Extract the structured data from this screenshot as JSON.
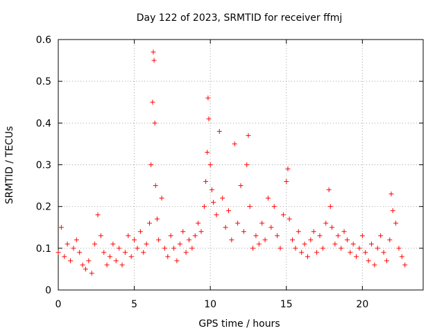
{
  "chart_data": {
    "type": "scatter",
    "title": "Day 122 of 2023, SRMTID for receiver ffmj",
    "xlabel": "GPS time / hours",
    "ylabel": "SRMTID / TECUs",
    "xlim": [
      0,
      24
    ],
    "ylim": [
      0,
      0.6
    ],
    "x_ticks": [
      0,
      5,
      10,
      15,
      20
    ],
    "x_tick_labels": [
      "0",
      "5",
      "10",
      "15",
      "20"
    ],
    "y_ticks": [
      0,
      0.1,
      0.2,
      0.3,
      0.4,
      0.5,
      0.6
    ],
    "y_tick_labels": [
      "0",
      "0.1",
      "0.2",
      "0.3",
      "0.4",
      "0.5",
      "0.6"
    ],
    "grid": true,
    "marker": "+",
    "color": "#ff0000",
    "series": [
      {
        "name": "SRMTID",
        "x": [
          0.0,
          0.2,
          0.4,
          0.6,
          0.8,
          1.0,
          1.2,
          1.4,
          1.6,
          1.8,
          2.0,
          2.2,
          2.4,
          2.6,
          2.8,
          3.0,
          3.2,
          3.4,
          3.6,
          3.8,
          4.0,
          4.2,
          4.4,
          4.6,
          4.8,
          5.0,
          5.2,
          5.4,
          5.6,
          5.8,
          6.0,
          6.1,
          6.2,
          6.25,
          6.3,
          6.35,
          6.4,
          6.5,
          6.6,
          6.8,
          7.0,
          7.2,
          7.4,
          7.6,
          7.8,
          8.0,
          8.2,
          8.4,
          8.6,
          8.8,
          9.0,
          9.2,
          9.4,
          9.6,
          9.7,
          9.8,
          9.85,
          9.9,
          10.0,
          10.1,
          10.2,
          10.4,
          10.6,
          10.8,
          11.0,
          11.2,
          11.4,
          11.6,
          11.8,
          12.0,
          12.2,
          12.4,
          12.5,
          12.6,
          12.8,
          13.0,
          13.2,
          13.4,
          13.6,
          13.8,
          14.0,
          14.2,
          14.4,
          14.6,
          14.8,
          15.0,
          15.1,
          15.2,
          15.4,
          15.6,
          15.8,
          16.0,
          16.2,
          16.4,
          16.6,
          16.8,
          17.0,
          17.2,
          17.4,
          17.6,
          17.8,
          17.9,
          18.0,
          18.2,
          18.4,
          18.6,
          18.8,
          19.0,
          19.2,
          19.4,
          19.6,
          19.8,
          20.0,
          20.2,
          20.4,
          20.6,
          20.8,
          21.0,
          21.2,
          21.4,
          21.6,
          21.8,
          21.9,
          22.0,
          22.2,
          22.4,
          22.6,
          22.8
        ],
        "y": [
          0.09,
          0.15,
          0.08,
          0.11,
          0.07,
          0.1,
          0.12,
          0.09,
          0.06,
          0.05,
          0.07,
          0.04,
          0.11,
          0.18,
          0.13,
          0.09,
          0.06,
          0.08,
          0.11,
          0.07,
          0.1,
          0.06,
          0.09,
          0.13,
          0.08,
          0.12,
          0.1,
          0.14,
          0.09,
          0.11,
          0.16,
          0.3,
          0.45,
          0.57,
          0.55,
          0.4,
          0.25,
          0.17,
          0.12,
          0.22,
          0.1,
          0.08,
          0.13,
          0.1,
          0.07,
          0.11,
          0.14,
          0.09,
          0.12,
          0.1,
          0.13,
          0.16,
          0.14,
          0.2,
          0.26,
          0.33,
          0.46,
          0.41,
          0.3,
          0.24,
          0.21,
          0.18,
          0.38,
          0.22,
          0.15,
          0.19,
          0.12,
          0.35,
          0.16,
          0.25,
          0.14,
          0.3,
          0.37,
          0.2,
          0.1,
          0.13,
          0.11,
          0.16,
          0.12,
          0.22,
          0.15,
          0.2,
          0.13,
          0.1,
          0.18,
          0.26,
          0.29,
          0.17,
          0.12,
          0.1,
          0.14,
          0.09,
          0.11,
          0.08,
          0.12,
          0.14,
          0.09,
          0.13,
          0.1,
          0.16,
          0.24,
          0.2,
          0.15,
          0.11,
          0.13,
          0.1,
          0.14,
          0.12,
          0.09,
          0.11,
          0.08,
          0.1,
          0.13,
          0.09,
          0.07,
          0.11,
          0.06,
          0.1,
          0.13,
          0.09,
          0.07,
          0.12,
          0.23,
          0.19,
          0.16,
          0.1,
          0.08,
          0.06
        ]
      }
    ]
  }
}
